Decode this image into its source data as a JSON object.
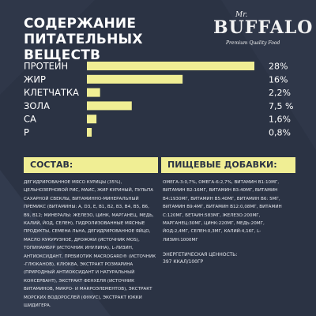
{
  "header": {
    "title_line1": "СОДЕРЖАНИЕ",
    "title_line2": "ПИТАТЕЛЬНЫХ ВЕЩЕСТВ"
  },
  "logo": {
    "prefix": "Mr.",
    "brand": "BUFFALO",
    "tagline": "Premium Quality Food"
  },
  "colors": {
    "background": "#2b3344",
    "accent": "#f0ee94",
    "text": "#ffffff"
  },
  "chart_data": {
    "type": "bar",
    "orientation": "horizontal",
    "categories": [
      "ПРОТЕИН",
      "ЖИР",
      "КЛЕТЧАТКА",
      "ЗОЛА",
      "СА",
      "Р"
    ],
    "values": [
      28,
      16,
      2.2,
      7.5,
      1.6,
      0.8
    ],
    "value_labels": [
      "28%",
      "16%",
      "2,2%",
      "7,5 %",
      "1,6%",
      "0,8%"
    ],
    "xlim": [
      0,
      28
    ],
    "grid": false,
    "legend": "none"
  },
  "composition": {
    "heading": "СОСТАВ:",
    "text": "ДЕГИДРИРОВАННОЕ МЯСО КУРИЦЫ (35%), ЦЕЛЬНОЗЕРНОВОЙ РИС, МАИС, ЖИР КУРИНЫЙ, ПУЛЬПА САХАРНОЙ СВЕКЛЫ, ВИТАМИННО-МИНЕРАЛЬНЫЙ ПРЕМИКС (ВИТАМИНЫ: А, D3, Е, В1, В2, В3, В4, В5, В6, В9, В12; МИНЕРАЛЫ: ЖЕЛЕЗО, ЦИНК, МАРГАНЕЦ, МЕДЬ, КАЛИЙ, ЙОД, СЕЛЕН), ГИДРОЛИЗОВАННЫЕ МЯСНЫЕ ПРОДУКТЫ, СЕМЕНА ЛЬНА, ДЕГИДРИРОВАННОЕ ЯЙЦО, МАСЛО КУКУРУЗНОЕ, ДРОЖЖИ (ИСТОЧНИК MOS), ТОПИНАМБУР (ИСТОЧНИК ИНУЛИНА), L-ЛИЗИН, АНТИОКСИДАНТ, ПРЕБИОТИК MACROGARD® (ИСТОЧНИК -ГЛЮКАНОВ), КЛЮКВА, ЭКСТРАКТ РОЗМАРИНА (ПРИРОДНЫЙ АНТИОКСИДАНТ И НАТУРАЛЬНЫЙ КОНСЕРВАНТ), ЭКСТРАКТ ФЕНХЕЛЯ (ИСТОЧНИК ВИТАМИНОВ, МИКРО- И МАКРОЭЛЕМЕНТОВ), ЭКСТРАКТ МОРСКИХ ВОДОРОСЛЕЙ (ФУКУС), ЭКСТРАКТ ЮККИ ШИДИГЕРА."
  },
  "additives": {
    "heading": "ПИЩЕВЫЕ ДОБАВКИ:",
    "text": "ОМЕГА-3:0,7%, ОМЕГА-6:2,7%, ВИТАМИН В1:10МГ, ВИТАМИН В2:16МГ, ВИТАМИН В3:40МГ, ВИТАМИН В4:1930МГ, ВИТАМИН В5:40МГ, ВИТАМИН В6: 5МГ, ВИТАМИН В9:4МГ, ВИТАМИН В12:0,08МГ, ВИТАМИН С:120МГ, БЕТАИН:583МГ, ЖЕЛЕЗО:200МГ, МАРГАНЕЦ:30МГ, ЦИНК:220МГ, МЕДЬ:20МГ, ЙОД:2,4МГ, СЕЛЕН:0,3МГ, КАЛИЙ:4,16Г, L-ЛИЗИН:1000МГ",
    "energy_label": "ЭНЕРГЕТИЧЕСКАЯ ЦЕННОСТЬ:",
    "energy_value": "397 ККАЛ/100ГР"
  }
}
